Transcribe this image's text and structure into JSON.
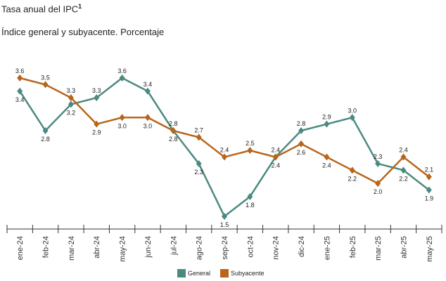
{
  "chart_data": {
    "type": "line",
    "title": "Tasa anual del IPC",
    "title_superscript": "1",
    "subtitle": "Índice general y subyacente. Porcentaje",
    "categories": [
      "ene-24",
      "feb-24",
      "mar-24",
      "abr-24",
      "may-24",
      "jun-24",
      "jul-24",
      "ago-24",
      "sep-24",
      "oct-24",
      "nov-24",
      "dic-24",
      "ene-25",
      "feb-25",
      "mar-25",
      "abr-25",
      "may-25"
    ],
    "series": [
      {
        "name": "General",
        "color": "#4b8a80",
        "values": [
          3.4,
          2.8,
          3.2,
          3.3,
          3.6,
          3.4,
          2.8,
          2.3,
          1.5,
          1.8,
          2.4,
          2.8,
          2.9,
          3.0,
          2.3,
          2.2,
          1.9
        ]
      },
      {
        "name": "Subyacente",
        "color": "#b8651b",
        "values": [
          3.6,
          3.5,
          3.3,
          2.9,
          3.0,
          3.0,
          2.8,
          2.7,
          2.4,
          2.5,
          2.4,
          2.6,
          2.4,
          2.2,
          2.0,
          2.4,
          2.1
        ]
      }
    ],
    "ylim": [
      0.9,
      3.8
    ],
    "grid": false,
    "legend": "bottom-center",
    "data_labels": true
  }
}
